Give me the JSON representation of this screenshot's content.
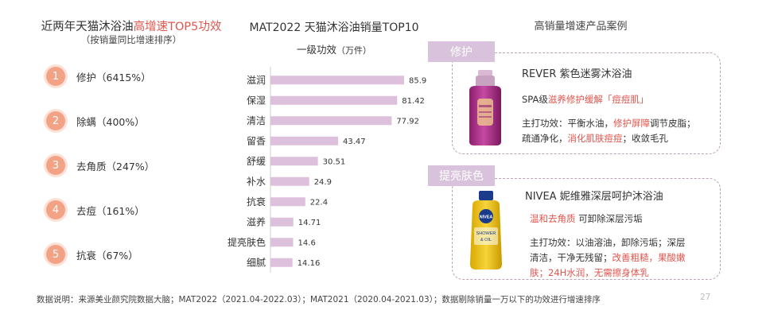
{
  "left": {
    "title_prefix": "近两年天猫沐浴油",
    "title_highlight": "高增速TOP5功效",
    "subtitle": "（按销量同比增速排序）",
    "items": [
      {
        "rank": "1",
        "label": "修护（6415%）"
      },
      {
        "rank": "2",
        "label": "除螨（400%）"
      },
      {
        "rank": "3",
        "label": "去角质（247%）"
      },
      {
        "rank": "4",
        "label": "去痘（161%）"
      },
      {
        "rank": "5",
        "label": "抗衰（67%）"
      }
    ]
  },
  "middle": {
    "title": "MAT2022 天猫沐浴油销量TOP10",
    "subtitle": "一级功效",
    "unit": "（万件）"
  },
  "chart_data": {
    "type": "bar",
    "orientation": "horizontal",
    "title": "MAT2022 天猫沐浴油销量TOP10",
    "subtitle": "一级功效（万件）",
    "categories": [
      "滋润",
      "保湿",
      "清洁",
      "留香",
      "舒缓",
      "补水",
      "抗衰",
      "滋养",
      "提亮肤色",
      "细腻"
    ],
    "values": [
      85.9,
      81.42,
      77.92,
      43.47,
      30.51,
      24.9,
      22.4,
      14.71,
      14.6,
      14.16
    ],
    "value_labels": [
      "85.9",
      "81.42",
      "77.92",
      "43.47",
      "30.51",
      "24.9",
      "22.4",
      "14.71",
      "14.6",
      "14.16"
    ],
    "xlim": [
      0,
      85.9
    ],
    "bar_color": "#ddc0dc",
    "grid": false,
    "legend": "none"
  },
  "right": {
    "title": "高销量增速产品案例",
    "case1": {
      "tag": "修护",
      "name": "REVER 紫色迷雾沐浴油",
      "desc_prefix": "SPA级",
      "desc_highlight": "滋养修护缓解「痘痘肌」",
      "f1": "主打功效：平衡水油，",
      "f1_red": "修护屏障",
      "f1_tail": "调节皮脂；",
      "f2": "疏通净化，",
      "f2_red": "消化肌肤痘痘",
      "f2_tail": "；收敛毛孔"
    },
    "case2": {
      "tag": "提亮肤色",
      "name": "NIVEA 妮维雅深层呵护沐浴油",
      "desc_highlight": "温和去角质",
      "desc_tail": " 可卸除深层污垢",
      "f1": "主打功效：以油溶油，卸除污垢；深层",
      "f2": "清洁，干净无残留；",
      "f2_red": "改善粗糙，果酸嫩",
      "f3_red": "肤；24H水润，无需擦身体乳",
      "bottle_brand": "NIVEA",
      "bottle_line1": "SHOWER",
      "bottle_line2": "& OIL"
    }
  },
  "footer": "数据说明：来源美业颜究院数据大脑；MAT2022（2021.04-2022.03）；MAT2021（2020.04-2021.03）；数据剔除销量一万以下的功效进行增速排序",
  "page_number": "27",
  "colors": {
    "accent_red": "#e0554d",
    "rank_circle": "#f2a285",
    "bar": "#ddc0dc",
    "tag_bg": "#d9c2dc"
  }
}
